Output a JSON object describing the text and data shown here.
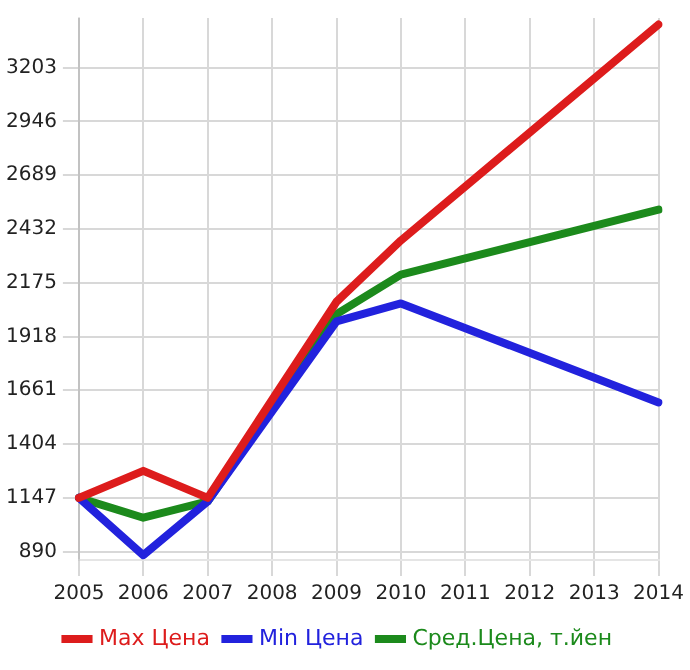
{
  "chart_data": {
    "type": "line",
    "categories": [
      "2005",
      "2006",
      "2007",
      "2008",
      "2009",
      "2010",
      "2011",
      "2012",
      "2013",
      "2014"
    ],
    "series": [
      {
        "name": "Max Цена",
        "color": "#dd1c1c",
        "values": [
          1147,
          1276,
          1147,
          null,
          2084,
          2377,
          null,
          null,
          null,
          3409
        ]
      },
      {
        "name": "Min Цена",
        "color": "#2222dd",
        "values": [
          1147,
          873,
          1130,
          null,
          1990,
          2076,
          null,
          null,
          null,
          1603
        ]
      },
      {
        "name": "Сред.Цена, т.йен",
        "color": "#1c8a1c",
        "values": [
          1147,
          1052,
          1130,
          null,
          2025,
          2214,
          null,
          null,
          null,
          2524
        ]
      }
    ],
    "ylim": [
      850,
      3440
    ],
    "yticks": [
      890,
      1147,
      1404,
      1661,
      1918,
      2175,
      2432,
      2689,
      2946,
      3203
    ],
    "grid": true,
    "legend": "bottom",
    "marker": "none",
    "line_style": "solid"
  }
}
